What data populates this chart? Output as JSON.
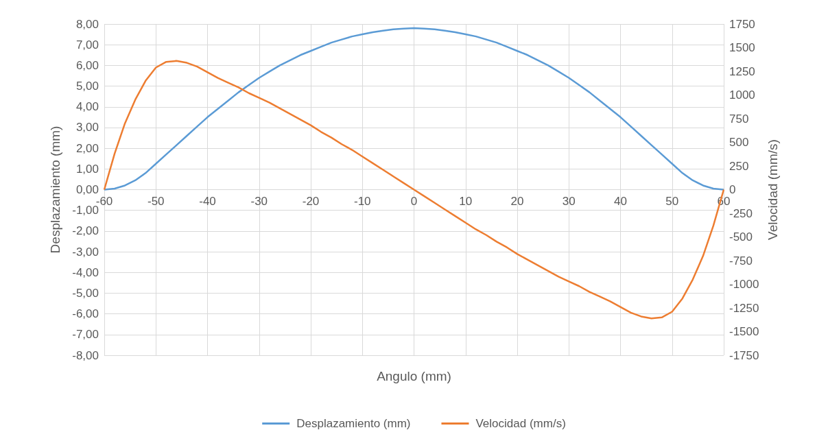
{
  "chart_data": {
    "type": "line",
    "xlabel": "Angulo (mm)",
    "ylabel": "Desplazamiento (mm)",
    "y2label": "Velocidad (mm/s)",
    "x": [
      -60,
      -58,
      -56,
      -54,
      -52,
      -50,
      -48,
      -46,
      -44,
      -42,
      -40,
      -38,
      -36,
      -34,
      -32,
      -30,
      -28,
      -26,
      -24,
      -22,
      -20,
      -18,
      -16,
      -14,
      -12,
      -10,
      -8,
      -6,
      -4,
      -2,
      0,
      2,
      4,
      6,
      8,
      10,
      12,
      14,
      16,
      18,
      20,
      22,
      24,
      26,
      28,
      30,
      32,
      34,
      36,
      38,
      40,
      42,
      44,
      46,
      48,
      50,
      52,
      54,
      56,
      58,
      60
    ],
    "series": [
      {
        "name": "Desplazamiento (mm)",
        "color": "#5b9bd5",
        "values": [
          0,
          0.05,
          0.2,
          0.45,
          0.8,
          1.25,
          1.7,
          2.15,
          2.6,
          3.05,
          3.5,
          3.9,
          4.3,
          4.7,
          5.05,
          5.4,
          5.7,
          6.0,
          6.25,
          6.5,
          6.7,
          6.9,
          7.1,
          7.25,
          7.4,
          7.5,
          7.6,
          7.68,
          7.74,
          7.78,
          7.8,
          7.78,
          7.74,
          7.68,
          7.6,
          7.5,
          7.4,
          7.25,
          7.1,
          6.9,
          6.7,
          6.5,
          6.25,
          6.0,
          5.7,
          5.4,
          5.05,
          4.7,
          4.3,
          3.9,
          3.5,
          3.05,
          2.6,
          2.15,
          1.7,
          1.25,
          0.8,
          0.45,
          0.2,
          0.05,
          0
        ]
      },
      {
        "name": "Velocidad (mm/s)",
        "color": "#ed7d31",
        "axis": "y2",
        "values": [
          0,
          380,
          700,
          950,
          1150,
          1290,
          1350,
          1360,
          1340,
          1300,
          1240,
          1180,
          1130,
          1080,
          1020,
          970,
          920,
          860,
          800,
          740,
          680,
          610,
          550,
          480,
          420,
          350,
          280,
          210,
          140,
          70,
          0,
          -70,
          -140,
          -210,
          -280,
          -350,
          -420,
          -480,
          -550,
          -610,
          -680,
          -740,
          -800,
          -860,
          -920,
          -970,
          -1020,
          -1080,
          -1130,
          -1180,
          -1240,
          -1300,
          -1340,
          -1360,
          -1350,
          -1290,
          -1150,
          -950,
          -700,
          -380,
          0
        ]
      }
    ],
    "xlim": [
      -60,
      60
    ],
    "xticks": [
      -60,
      -50,
      -40,
      -30,
      -20,
      -10,
      0,
      10,
      20,
      30,
      40,
      50,
      60
    ],
    "ylim": [
      -8,
      8
    ],
    "yticks": [
      {
        "value": -8,
        "label": "-8,00"
      },
      {
        "value": -7,
        "label": "-7,00"
      },
      {
        "value": -6,
        "label": "-6,00"
      },
      {
        "value": -5,
        "label": "-5,00"
      },
      {
        "value": -4,
        "label": "-4,00"
      },
      {
        "value": -3,
        "label": "-3,00"
      },
      {
        "value": -2,
        "label": "-2,00"
      },
      {
        "value": -1,
        "label": "-1,00"
      },
      {
        "value": 0,
        "label": "0,00"
      },
      {
        "value": 1,
        "label": "1,00"
      },
      {
        "value": 2,
        "label": "2,00"
      },
      {
        "value": 3,
        "label": "3,00"
      },
      {
        "value": 4,
        "label": "4,00"
      },
      {
        "value": 5,
        "label": "5,00"
      },
      {
        "value": 6,
        "label": "6,00"
      },
      {
        "value": 7,
        "label": "7,00"
      },
      {
        "value": 8,
        "label": "8,00"
      }
    ],
    "y2lim": [
      -1750,
      1750
    ],
    "y2ticks": [
      -1750,
      -1500,
      -1250,
      -1000,
      -750,
      -500,
      -250,
      0,
      250,
      500,
      750,
      1000,
      1250,
      1500,
      1750
    ],
    "grid": true,
    "legend": "bottom",
    "marker": "none",
    "line_style": "solid"
  }
}
